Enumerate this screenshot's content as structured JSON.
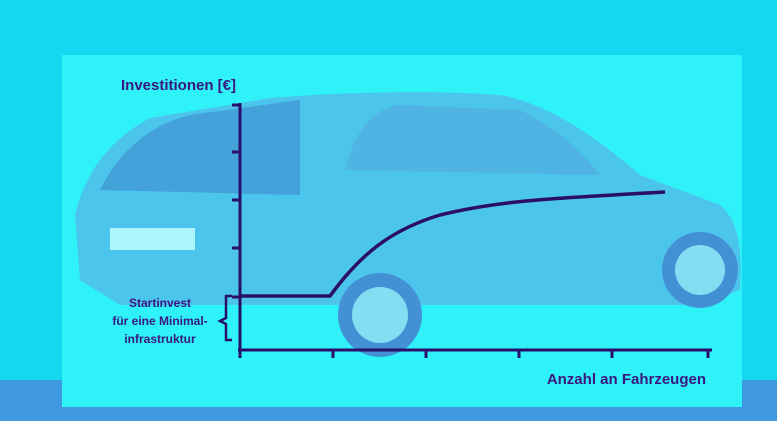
{
  "diagram": {
    "y_axis_label": "Investitionen [€]",
    "x_axis_label": "Anzahl an Fahrzeugen",
    "annotation": {
      "lines": [
        "Startinvest",
        "für eine Minimal-",
        "infrastruktur"
      ]
    }
  }
}
